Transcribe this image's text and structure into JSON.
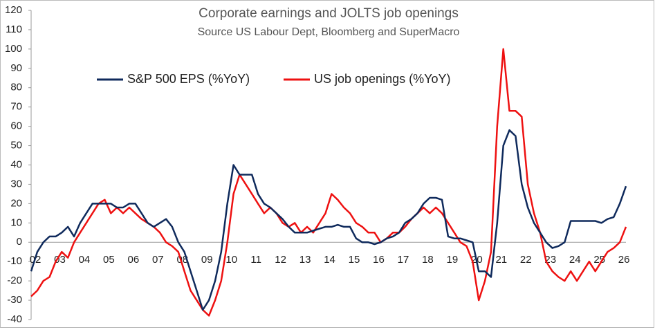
{
  "chart_data": {
    "type": "line",
    "title": "Corporate earnings and JOLTS job openings",
    "subtitle": "Source US Labour Dept, Bloomberg and SuperMacro",
    "categories": [
      "02",
      null,
      null,
      null,
      "03",
      null,
      null,
      null,
      "04",
      null,
      null,
      null,
      "05",
      null,
      null,
      null,
      "06",
      null,
      null,
      null,
      "07",
      null,
      null,
      null,
      "08",
      null,
      null,
      null,
      "09",
      null,
      null,
      null,
      "10",
      null,
      null,
      null,
      "11",
      null,
      null,
      null,
      "12",
      null,
      null,
      null,
      "13",
      null,
      null,
      null,
      "14",
      null,
      null,
      null,
      "15",
      null,
      null,
      null,
      "16",
      null,
      null,
      null,
      "17",
      null,
      null,
      null,
      "18",
      null,
      null,
      null,
      "19",
      null,
      null,
      null,
      "20",
      null,
      null,
      null,
      "21",
      null,
      null,
      null,
      "22",
      null,
      null,
      null,
      "23",
      null,
      null,
      null,
      "24",
      null,
      null,
      null,
      "25",
      null,
      null,
      null,
      "26",
      null
    ],
    "series": [
      {
        "name": "S&P 500 EPS (%YoY)",
        "color": "#0f2a5c",
        "values": [
          -15,
          -5,
          0,
          3,
          3,
          5,
          8,
          3,
          10,
          15,
          20,
          20,
          20,
          20,
          18,
          18,
          20,
          20,
          15,
          10,
          8,
          10,
          12,
          8,
          0,
          -5,
          -15,
          -25,
          -35,
          -30,
          -20,
          -5,
          20,
          40,
          35,
          35,
          35,
          25,
          20,
          18,
          15,
          12,
          8,
          5,
          5,
          5,
          6,
          7,
          8,
          8,
          9,
          8,
          8,
          2,
          0,
          0,
          -1,
          0,
          2,
          3,
          5,
          10,
          12,
          15,
          20,
          23,
          23,
          22,
          3,
          2,
          2,
          1,
          0,
          -15,
          -15,
          -18,
          10,
          50,
          58,
          55,
          30,
          18,
          10,
          5,
          0,
          -3,
          -2,
          0,
          11,
          11,
          11,
          11,
          11,
          10,
          12,
          13,
          20,
          29
        ]
      },
      {
        "name": "US job openings (%YoY)",
        "color": "#ee1111",
        "values": [
          -28,
          -25,
          -20,
          -18,
          -10,
          -5,
          -8,
          0,
          5,
          10,
          15,
          20,
          22,
          15,
          18,
          15,
          18,
          15,
          12,
          10,
          8,
          5,
          0,
          -2,
          -5,
          -15,
          -25,
          -30,
          -35,
          -38,
          -30,
          -20,
          0,
          25,
          35,
          30,
          25,
          20,
          15,
          18,
          15,
          10,
          8,
          10,
          5,
          8,
          5,
          10,
          15,
          25,
          22,
          18,
          15,
          10,
          8,
          5,
          5,
          0,
          2,
          5,
          5,
          8,
          12,
          15,
          18,
          15,
          18,
          15,
          10,
          5,
          0,
          -2,
          -10,
          -30,
          -20,
          -5,
          60,
          100,
          68,
          68,
          65,
          30,
          15,
          5,
          -10,
          -15,
          -18,
          -20,
          -15,
          -20,
          -15,
          -10,
          -15,
          -10,
          -5,
          -3,
          0,
          8
        ]
      }
    ],
    "ylim": [
      -40,
      120
    ],
    "yticks": [
      -40,
      -30,
      -20,
      -10,
      0,
      10,
      20,
      30,
      40,
      50,
      60,
      70,
      80,
      90,
      100,
      110,
      120
    ]
  }
}
